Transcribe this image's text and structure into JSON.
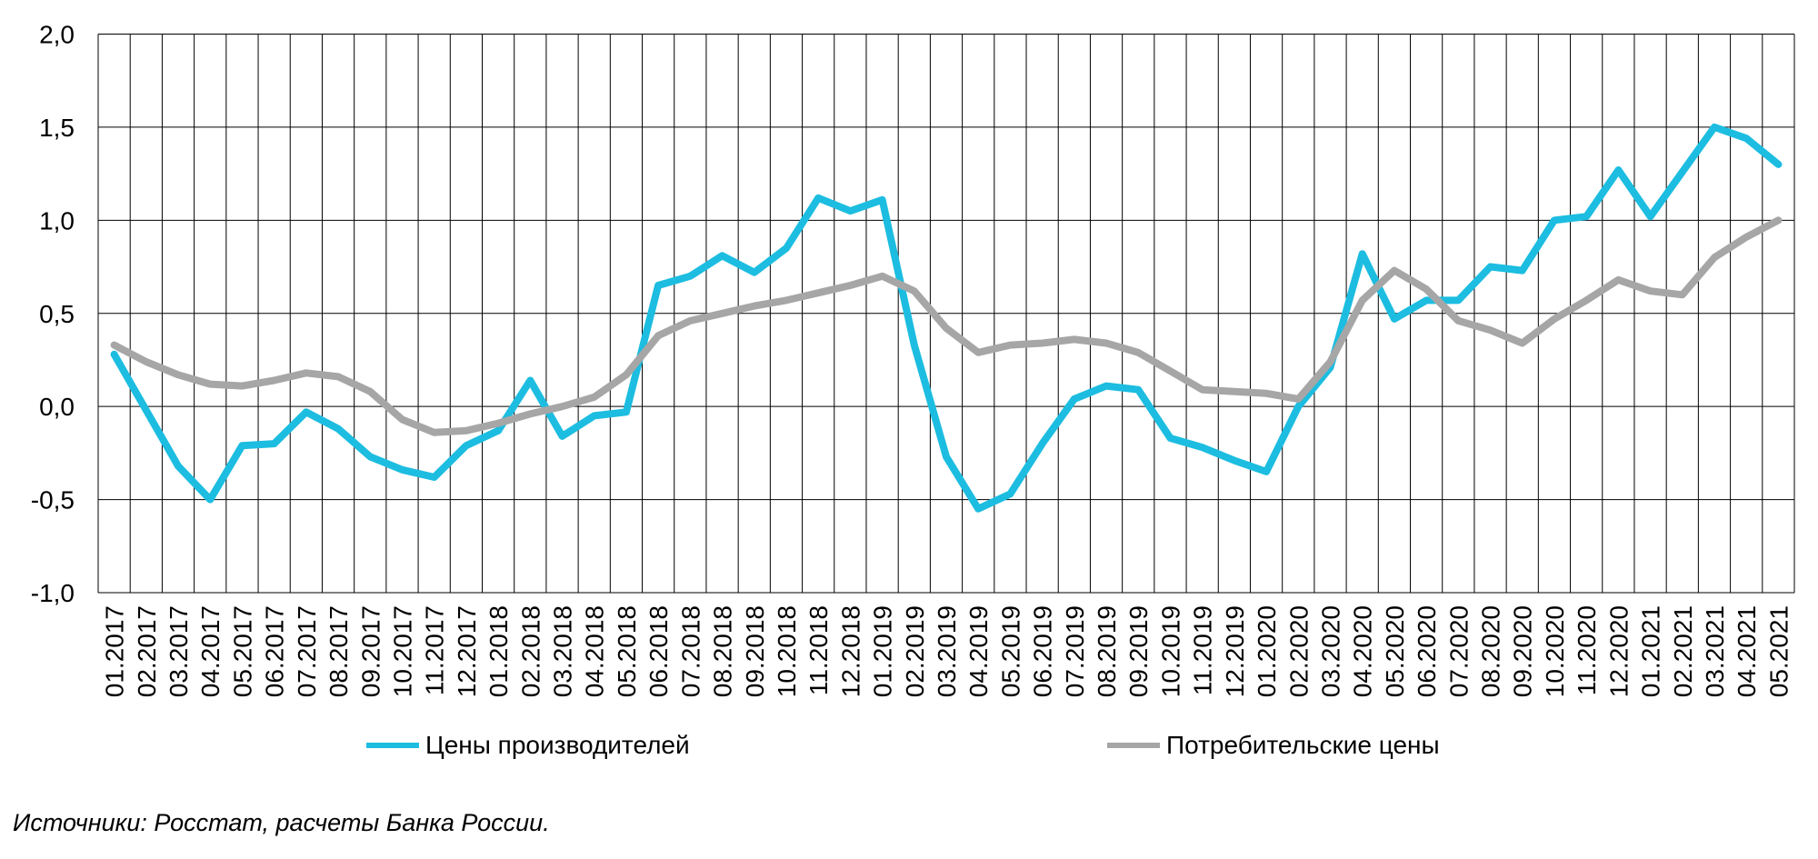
{
  "source_note": "Источники: Росстат, расчеты Банка России.",
  "chart_data": {
    "type": "line",
    "title": "",
    "grid": "both",
    "legend_position": "bottom",
    "ylim": [
      -1.0,
      2.0
    ],
    "y_tick_step": 0.5,
    "y_ticks": [
      "2,0",
      "1,5",
      "1,0",
      "0,5",
      "0,0",
      "-0,5",
      "-1,0"
    ],
    "x_labels": [
      "01.2017",
      "02.2017",
      "03.2017",
      "04.2017",
      "05.2017",
      "06.2017",
      "07.2017",
      "08.2017",
      "09.2017",
      "10.2017",
      "11.2017",
      "12.2017",
      "01.2018",
      "02.2018",
      "03.2018",
      "04.2018",
      "05.2018",
      "06.2018",
      "07.2018",
      "08.2018",
      "09.2018",
      "10.2018",
      "11.2018",
      "12.2018",
      "01.2019",
      "02.2019",
      "03.2019",
      "04.2019",
      "05.2019",
      "06.2019",
      "07.2019",
      "08.2019",
      "09.2019",
      "10.2019",
      "11.2019",
      "12.2019",
      "01.2020",
      "02.2020",
      "03.2020",
      "04.2020",
      "05.2020",
      "06.2020",
      "07.2020",
      "08.2020",
      "09.2020",
      "10.2020",
      "11.2020",
      "12.2020",
      "01.2021",
      "02.2021",
      "03.2021",
      "04.2021",
      "05.2021"
    ],
    "series": [
      {
        "id": "producer",
        "name": "Цены производителей",
        "color": "#1CBDE0",
        "values": [
          0.28,
          -0.02,
          -0.32,
          -0.5,
          -0.21,
          -0.2,
          -0.03,
          -0.12,
          -0.27,
          -0.34,
          -0.38,
          -0.21,
          -0.13,
          0.14,
          -0.16,
          -0.05,
          -0.03,
          0.65,
          0.7,
          0.81,
          0.72,
          0.85,
          1.12,
          1.05,
          1.11,
          0.33,
          -0.27,
          -0.55,
          -0.47,
          -0.2,
          0.04,
          0.11,
          0.09,
          -0.17,
          -0.22,
          -0.29,
          -0.35,
          0.0,
          0.21,
          0.82,
          0.47,
          0.57,
          0.57,
          0.75,
          0.73,
          1.0,
          1.02,
          1.27,
          1.02,
          1.26,
          1.5,
          1.44,
          1.3
        ]
      },
      {
        "id": "consumer",
        "name": "Потребительские цены",
        "color": "#A6A6A6",
        "values": [
          0.33,
          0.24,
          0.17,
          0.12,
          0.11,
          0.14,
          0.18,
          0.16,
          0.08,
          -0.07,
          -0.14,
          -0.13,
          -0.09,
          -0.04,
          0.0,
          0.05,
          0.17,
          0.38,
          0.46,
          0.5,
          0.54,
          0.57,
          0.61,
          0.65,
          0.7,
          0.62,
          0.42,
          0.29,
          0.33,
          0.34,
          0.36,
          0.34,
          0.29,
          0.19,
          0.09,
          0.08,
          0.07,
          0.04,
          0.24,
          0.57,
          0.73,
          0.63,
          0.46,
          0.41,
          0.34,
          0.47,
          0.57,
          0.68,
          0.62,
          0.6,
          0.8,
          0.91,
          1.0
        ]
      }
    ],
    "axis_color": "#000000",
    "background_color": "#FFFFFF"
  }
}
